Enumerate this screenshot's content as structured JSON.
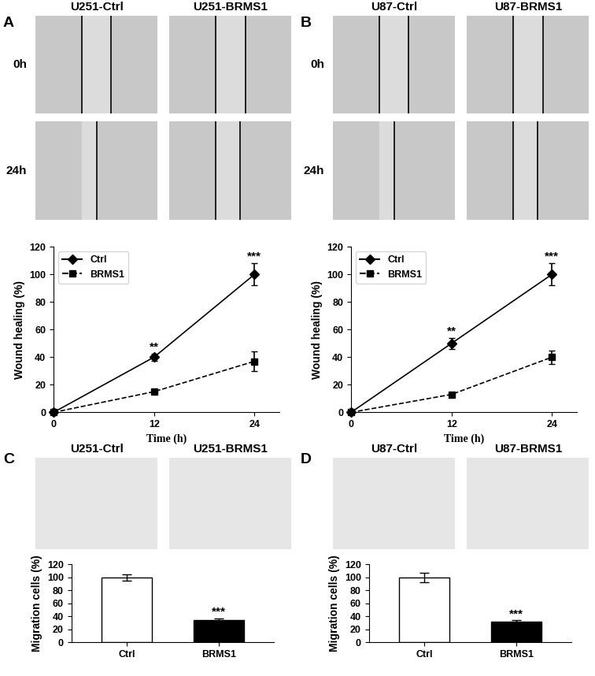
{
  "panels": [
    {
      "letter": "A",
      "columns": [
        "U251-Ctrl",
        "U251-BRMS1"
      ],
      "rows": [
        "0h",
        "24h"
      ]
    },
    {
      "letter": "B",
      "columns": [
        "U87-Ctrl",
        "U87-BRMS1"
      ],
      "rows": [
        "0h",
        "24h"
      ]
    },
    {
      "letter": "C",
      "columns": [
        "U251-Ctrl",
        "U251-BRMS1"
      ]
    },
    {
      "letter": "D",
      "columns": [
        "U87-Ctrl",
        "U87-BRMS1"
      ]
    }
  ],
  "chart_data": [
    {
      "type": "line",
      "x_label": "Time (h)",
      "y_label": "Wound healing (%)",
      "x": [
        0,
        12,
        24
      ],
      "xlim": [
        0,
        27
      ],
      "xticks": [
        0,
        12,
        24
      ],
      "ylim": [
        0,
        120
      ],
      "yticks": [
        0,
        20,
        40,
        60,
        80,
        100,
        120
      ],
      "legend": "upper left",
      "series": [
        {
          "name": "Ctrl",
          "color": "#000000",
          "marker": "diamond",
          "line_style": "solid",
          "values": [
            0,
            40,
            100
          ],
          "errors": [
            0,
            2.5,
            8
          ]
        },
        {
          "name": "BRMS1",
          "color": "#000000",
          "marker": "square",
          "line_style": "dashed",
          "values": [
            0,
            15,
            37
          ],
          "errors": [
            0,
            1,
            7
          ]
        }
      ],
      "annotations": [
        {
          "x": 12,
          "text": "**"
        },
        {
          "x": 24,
          "text": "***"
        }
      ]
    },
    {
      "type": "line",
      "x_label": "Time (h)",
      "y_label": "Wound healing (%)",
      "x": [
        0,
        12,
        24
      ],
      "xlim": [
        0,
        27
      ],
      "xticks": [
        0,
        12,
        24
      ],
      "ylim": [
        0,
        120
      ],
      "yticks": [
        0,
        20,
        40,
        60,
        80,
        100,
        120
      ],
      "legend": "upper left",
      "series": [
        {
          "name": "Ctrl",
          "color": "#000000",
          "marker": "diamond",
          "line_style": "solid",
          "values": [
            0,
            50,
            100
          ],
          "errors": [
            0,
            4,
            8
          ]
        },
        {
          "name": "BRMS1",
          "color": "#000000",
          "marker": "square",
          "line_style": "dashed",
          "values": [
            0,
            13,
            40
          ],
          "errors": [
            0,
            1,
            5
          ]
        }
      ],
      "annotations": [
        {
          "x": 12,
          "text": "**"
        },
        {
          "x": 24,
          "text": "***"
        }
      ]
    },
    {
      "type": "bar",
      "y_label": "Migration cells (%)",
      "categories": [
        "Ctrl",
        "BRMS1"
      ],
      "values": [
        100,
        34
      ],
      "errors": [
        5,
        3
      ],
      "colors": [
        "#ffffff",
        "#000000"
      ],
      "ylim": [
        0,
        120
      ],
      "yticks": [
        0,
        20,
        40,
        60,
        80,
        100,
        120
      ],
      "annotations": [
        {
          "category": "BRMS1",
          "text": "***"
        }
      ]
    },
    {
      "type": "bar",
      "y_label": "Migration cells (%)",
      "categories": [
        "Ctrl",
        "BRMS1"
      ],
      "values": [
        100,
        32
      ],
      "errors": [
        7,
        2
      ],
      "colors": [
        "#ffffff",
        "#000000"
      ],
      "ylim": [
        0,
        120
      ],
      "yticks": [
        0,
        20,
        40,
        60,
        80,
        100,
        120
      ],
      "annotations": [
        {
          "category": "BRMS1",
          "text": "***"
        }
      ]
    }
  ]
}
